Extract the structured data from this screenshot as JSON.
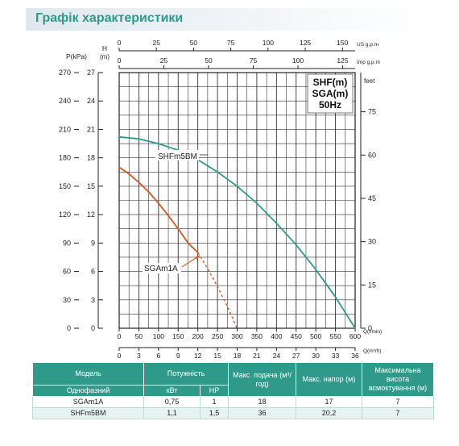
{
  "page": {
    "title": "Графік характеристики"
  },
  "chart_data": {
    "type": "line",
    "y_left_outer": {
      "label_text": "P(kPa)",
      "ticks": [
        0,
        30,
        60,
        90,
        120,
        150,
        180,
        210,
        240,
        270
      ]
    },
    "y_left_inner": {
      "label_text": "H",
      "unit": "(m)",
      "ticks": [
        0,
        3,
        6,
        9,
        12,
        15,
        18,
        21,
        24,
        27
      ],
      "range": [
        0,
        27
      ]
    },
    "y_right": {
      "label": "feet",
      "ticks": [
        0,
        15,
        30,
        45,
        60,
        75
      ]
    },
    "x_bottom_1": {
      "label": "Q(l/min)",
      "ticks": [
        0,
        50,
        100,
        150,
        200,
        250,
        300,
        350,
        400,
        450,
        500,
        550,
        600
      ],
      "range": [
        0,
        600
      ]
    },
    "x_bottom_2": {
      "label": "Q(m³/h)",
      "ticks": [
        0,
        3,
        6,
        9,
        12,
        15,
        18,
        21,
        24,
        27,
        30,
        33,
        36
      ]
    },
    "x_top_1": {
      "label": "US g.p.m",
      "ticks": [
        0,
        25,
        50,
        75,
        100,
        125,
        150
      ]
    },
    "x_top_2": {
      "label": "Imp g.p.m",
      "ticks": [
        0,
        25,
        50,
        75,
        100,
        125
      ]
    },
    "grid": true,
    "legend_box": [
      "SHF(m)",
      "SGA(m)",
      "50Hz"
    ],
    "series": [
      {
        "name": "SHFm5BM",
        "color": "#2c9b8e",
        "x": [
          0,
          50,
          100,
          150,
          200,
          250,
          300,
          350,
          400,
          450,
          500,
          550,
          600
        ],
        "y": [
          20.2,
          20.0,
          19.5,
          18.8,
          17.8,
          16.5,
          15.0,
          13.2,
          11.1,
          8.8,
          6.2,
          3.3,
          0
        ]
      },
      {
        "name": "SGAm1A",
        "color": "#d35a1f",
        "x": [
          0,
          25,
          50,
          75,
          100,
          125,
          150,
          175,
          200
        ],
        "y": [
          17.0,
          16.3,
          15.4,
          14.4,
          13.2,
          11.9,
          10.5,
          9.0,
          8.0
        ],
        "x_dashed": [
          200,
          225,
          250,
          275,
          300
        ],
        "y_dashed": [
          8.0,
          6.3,
          4.4,
          2.3,
          0
        ]
      }
    ]
  },
  "table": {
    "headers": {
      "model": "Модель",
      "single_phase": "Однофазний",
      "power": "Потужність",
      "kw": "кВт",
      "hp": "HP",
      "max_flow": "Макс. подача (м³/год)",
      "max_head": "Макс. напор (м)",
      "max_suction": "Максимальна висота всмоктування (м)"
    },
    "rows": [
      {
        "model": "SGAm1A",
        "kw": "0,75",
        "hp": "1",
        "flow": "18",
        "head": "17",
        "suction": "7"
      },
      {
        "model": "SHFm5BM",
        "kw": "1,1",
        "hp": "1,5",
        "flow": "36",
        "head": "20,2",
        "suction": "7"
      }
    ]
  }
}
